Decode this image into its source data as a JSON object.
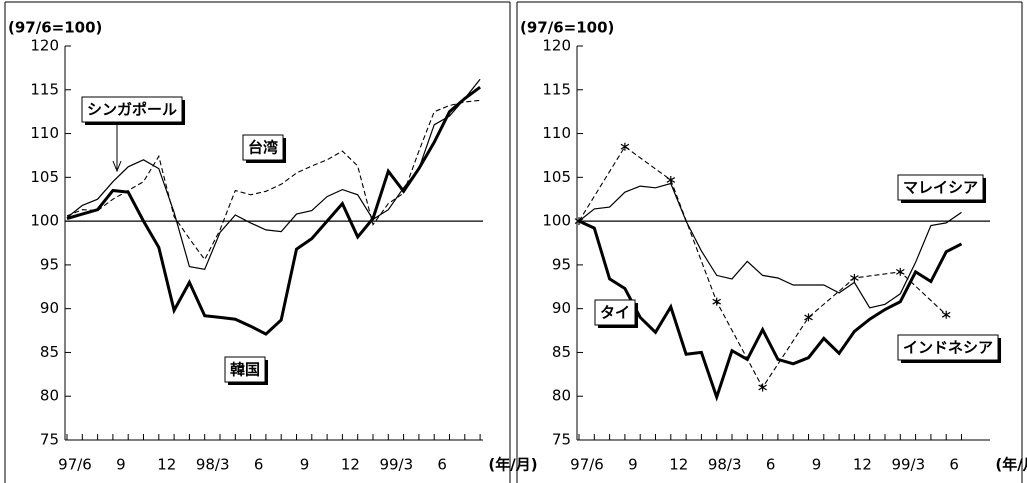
{
  "chart_data": [
    {
      "type": "line",
      "y_label": "(97/6=100)",
      "x_label": "(年/月)",
      "categories": [
        "97/6",
        null,
        null,
        "9",
        null,
        null,
        "12",
        null,
        null,
        "98/3",
        null,
        null,
        "6",
        null,
        null,
        "9",
        null,
        null,
        "12",
        null,
        null,
        "99/3",
        null,
        null,
        "6",
        null,
        null,
        null
      ],
      "ylim": [
        75,
        120
      ],
      "yticks": [
        75,
        80,
        85,
        90,
        95,
        100,
        105,
        110,
        115,
        120
      ],
      "hline": 100,
      "series": [
        {
          "name": "韓国",
          "color": "#000",
          "style": "thick",
          "values": [
            100.3,
            100.8,
            101.3,
            103.5,
            103.3,
            100.0,
            97.0,
            89.8,
            93.0,
            89.2,
            89.0,
            88.8,
            88.0,
            87.1,
            88.7,
            96.8,
            98.0,
            100.0,
            102.0,
            98.2,
            100.3,
            105.7,
            103.4,
            106.0,
            109.0,
            112.5,
            114.0,
            115.3
          ]
        },
        {
          "name": "シンガポール",
          "color": "#000",
          "style": "thin",
          "values": [
            100.4,
            101.8,
            102.5,
            104.5,
            106.2,
            107.0,
            106.0,
            101.0,
            94.8,
            94.5,
            98.7,
            100.7,
            99.8,
            99.0,
            98.8,
            100.8,
            101.2,
            102.8,
            103.6,
            103.0,
            100.2,
            101.3,
            103.8,
            106.0,
            111.0,
            112.0,
            114.0,
            116.2
          ]
        },
        {
          "name": "台湾",
          "color": "#000",
          "style": "dashed",
          "values": [
            100.6,
            101.3,
            101.2,
            102.5,
            103.5,
            104.5,
            107.4,
            100.5,
            98.0,
            95.6,
            99.0,
            103.5,
            103.0,
            103.4,
            104.2,
            105.5,
            106.3,
            107.0,
            108.0,
            106.3,
            99.6,
            102.0,
            103.2,
            108.0,
            112.5,
            113.2,
            113.6,
            113.8
          ]
        }
      ]
    },
    {
      "type": "line",
      "y_label": "(97/6=100)",
      "x_label": "(年/月)",
      "categories": [
        "97/6",
        null,
        null,
        "9",
        null,
        null,
        "12",
        null,
        null,
        "98/3",
        null,
        null,
        "6",
        null,
        null,
        "9",
        null,
        null,
        "12",
        null,
        null,
        "99/3",
        null,
        null,
        "6",
        null
      ],
      "ylim": [
        75,
        120
      ],
      "yticks": [
        75,
        80,
        85,
        90,
        95,
        100,
        105,
        110,
        115,
        120
      ],
      "hline": 100,
      "series": [
        {
          "name": "マレイシア",
          "color": "#000",
          "style": "thin",
          "values": [
            100.0,
            101.4,
            101.6,
            103.3,
            104.0,
            103.8,
            104.3,
            100.0,
            96.6,
            93.8,
            93.4,
            95.4,
            93.8,
            93.5,
            92.7,
            92.7,
            92.7,
            91.8,
            93.0,
            90.1,
            90.5,
            91.7,
            95.3,
            99.5,
            99.8,
            101.0
          ]
        },
        {
          "name": "タイ",
          "color": "#000",
          "style": "thick",
          "values": [
            100.0,
            99.2,
            93.4,
            92.3,
            89.0,
            87.3,
            90.2,
            84.8,
            85.0,
            79.9,
            85.2,
            84.2,
            87.6,
            84.2,
            83.7,
            84.4,
            86.6,
            84.9,
            87.4,
            88.8,
            89.9,
            90.8,
            94.2,
            93.1,
            96.5,
            97.4
          ]
        },
        {
          "name": "インドネシア",
          "color": "#000",
          "style": "dashed",
          "marker": "asterisk",
          "connect_gaps": true,
          "values": [
            100.0,
            null,
            null,
            108.5,
            null,
            null,
            104.7,
            null,
            null,
            90.8,
            null,
            null,
            81.0,
            null,
            null,
            89.0,
            null,
            null,
            93.5,
            null,
            null,
            94.2,
            null,
            null,
            89.3,
            null
          ]
        }
      ]
    }
  ]
}
